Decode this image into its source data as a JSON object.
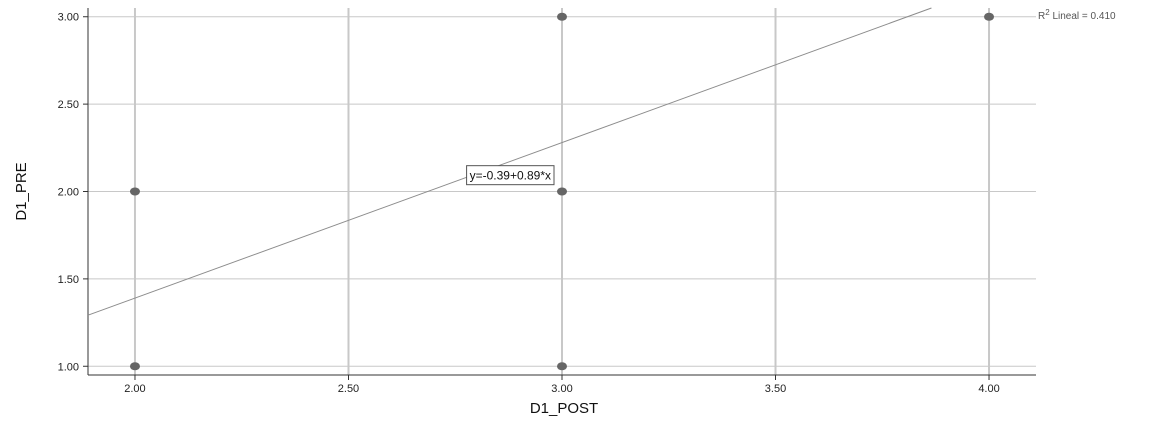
{
  "chart_data": {
    "type": "scatter",
    "xlabel": "D1_POST",
    "ylabel": "D1_PRE",
    "xlim": [
      1.89,
      4.11
    ],
    "ylim": [
      0.95,
      3.05
    ],
    "x_ticks": [
      2.0,
      2.5,
      3.0,
      3.5,
      4.0
    ],
    "x_tick_labels": [
      "2.00",
      "2.50",
      "3.00",
      "3.50",
      "4.00"
    ],
    "y_ticks": [
      1.0,
      1.5,
      2.0,
      2.5,
      3.0
    ],
    "y_tick_labels": [
      "1.00",
      "1.50",
      "2.00",
      "2.50",
      "3.00"
    ],
    "points": [
      {
        "x": 2.0,
        "y": 2.0
      },
      {
        "x": 2.0,
        "y": 1.0
      },
      {
        "x": 3.0,
        "y": 3.0
      },
      {
        "x": 3.0,
        "y": 2.0
      },
      {
        "x": 3.0,
        "y": 1.0
      },
      {
        "x": 4.0,
        "y": 3.0
      }
    ],
    "fit_line": {
      "intercept": -0.39,
      "slope": 0.89
    },
    "equation_label": "y=-0.39+0.89*x",
    "r2_prefix": "R",
    "r2_superscript": "2",
    "r2_suffix": " Lineal = 0.410",
    "grid": true,
    "colors": {
      "points": "#666666",
      "fit_line": "#8c8c8c",
      "grid": "#c8c8c8",
      "axis": "#333333"
    }
  }
}
